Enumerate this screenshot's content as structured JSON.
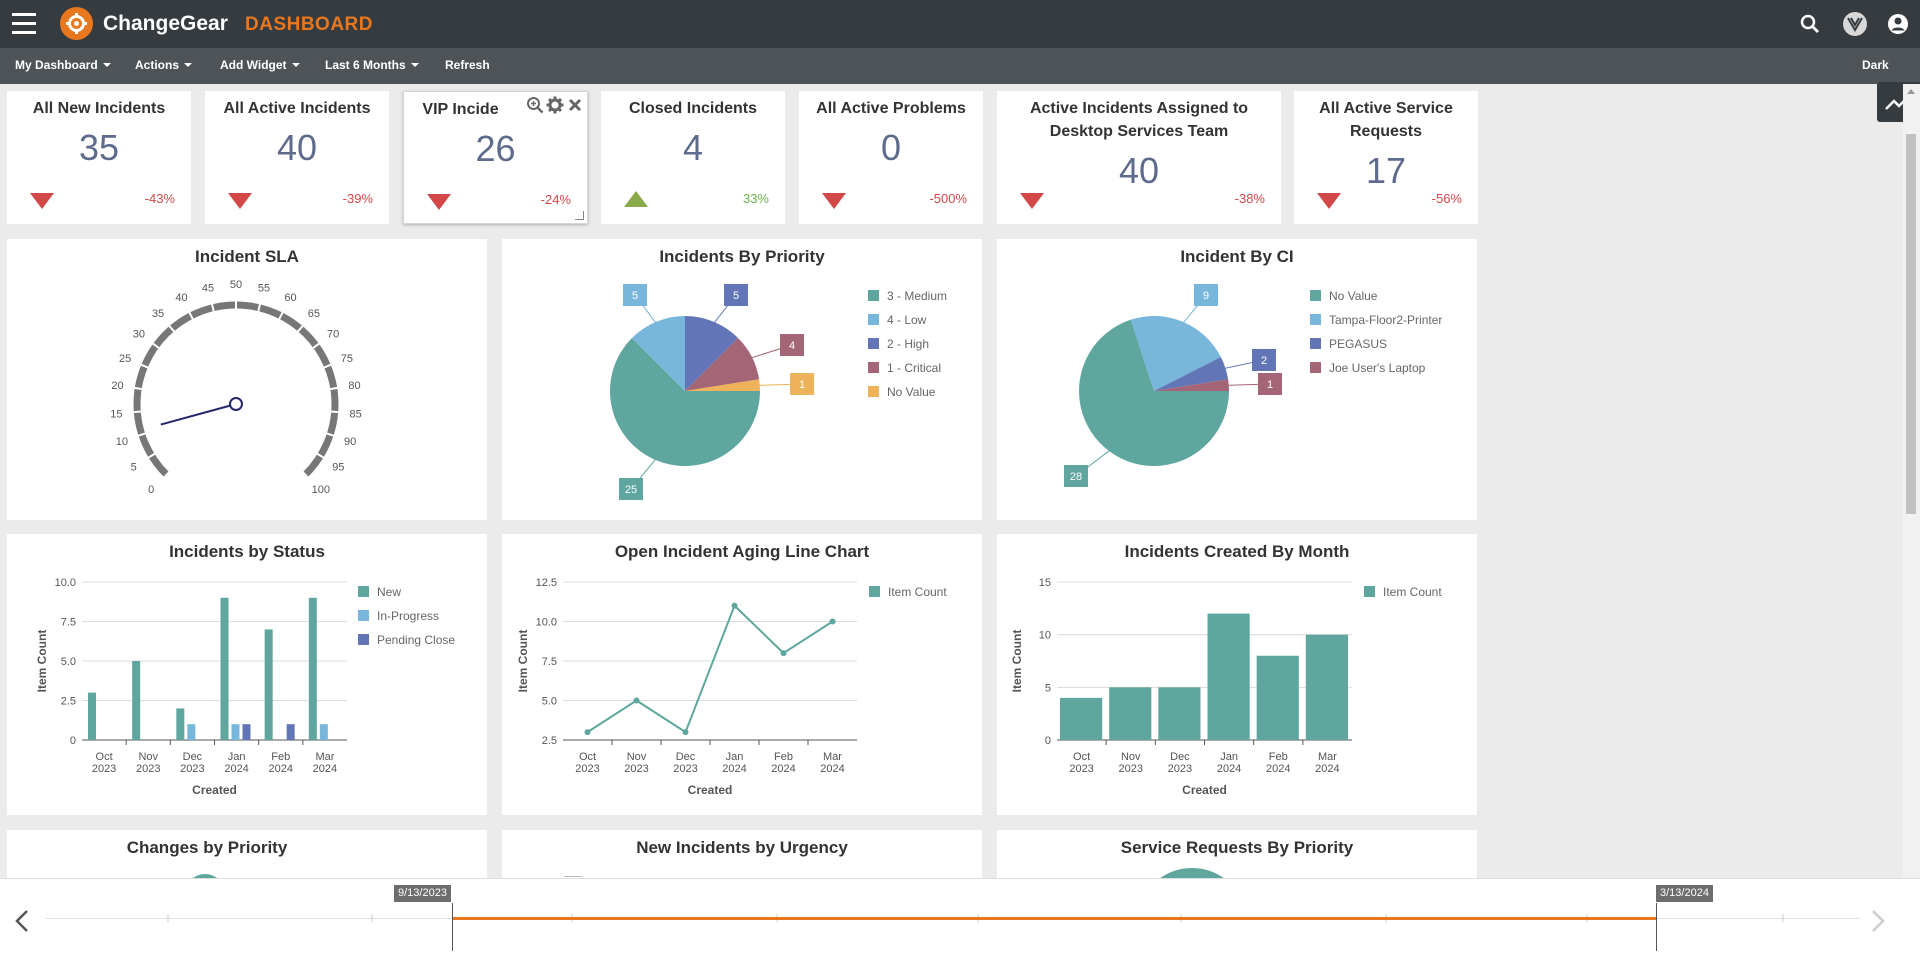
{
  "app": {
    "name": "ChangeGear",
    "section": "DASHBOARD"
  },
  "menu": {
    "my_dashboard": "My Dashboard",
    "actions": "Actions",
    "add_widget": "Add Widget",
    "range": "Last 6 Months",
    "refresh": "Refresh",
    "theme": "Dark"
  },
  "kpis": [
    {
      "title": "All New Incidents",
      "value": "35",
      "change": "-43%",
      "trend": "down"
    },
    {
      "title": "All Active Incidents",
      "value": "40",
      "change": "-39%",
      "trend": "down"
    },
    {
      "title": "VIP Incide",
      "value": "26",
      "change": "-24%",
      "trend": "down"
    },
    {
      "title": "Closed Incidents",
      "value": "4",
      "change": "33%",
      "trend": "up"
    },
    {
      "title": "All Active Problems",
      "value": "0",
      "change": "-500%",
      "trend": "down"
    },
    {
      "title": "Active Incidents Assigned to Desktop Services Team",
      "value": "40",
      "change": "-38%",
      "trend": "down"
    },
    {
      "title": "All Active Service Requests",
      "value": "17",
      "change": "-56%",
      "trend": "down"
    }
  ],
  "panels": {
    "sla": "Incident SLA",
    "priority": "Incidents By Priority",
    "ci": "Incident By CI",
    "status": "Incidents by Status",
    "aging": "Open Incident Aging Line Chart",
    "by_month": "Incidents Created By Month",
    "changes": "Changes by Priority",
    "urgency": "New Incidents by Urgency",
    "sr_priority": "Service Requests By Priority"
  },
  "timeline": {
    "start": "9/13/2023",
    "end": "3/13/2024"
  },
  "chart_data": [
    {
      "type": "gauge",
      "title": "Incident SLA",
      "min": 0,
      "max": 100,
      "ticks": [
        0,
        5,
        10,
        15,
        20,
        25,
        30,
        35,
        40,
        45,
        50,
        55,
        60,
        65,
        70,
        75,
        80,
        85,
        90,
        95,
        100
      ],
      "value": 11
    },
    {
      "type": "pie",
      "title": "Incidents By Priority",
      "labels": [
        "3 - Medium",
        "4 - Low",
        "2 - High",
        "1 - Critical",
        "No Value"
      ],
      "values": [
        25,
        5,
        5,
        4,
        1
      ],
      "colors": [
        "#5fa79e",
        "#79b6dc",
        "#6275b6",
        "#a46677",
        "#eeb35a"
      ]
    },
    {
      "type": "pie",
      "title": "Incident By CI",
      "labels": [
        "No Value",
        "Tampa-Floor2-Printer",
        "PEGASUS",
        "Joe User's Laptop"
      ],
      "values": [
        28,
        9,
        2,
        1
      ],
      "colors": [
        "#5fa79e",
        "#79b6dc",
        "#6275b6",
        "#a46677"
      ]
    },
    {
      "type": "bar",
      "title": "Incidents by Status",
      "categories": [
        [
          "Oct",
          "2023"
        ],
        [
          "Nov",
          "2023"
        ],
        [
          "Dec",
          "2023"
        ],
        [
          "Jan",
          "2024"
        ],
        [
          "Feb",
          "2024"
        ],
        [
          "Mar",
          "2024"
        ]
      ],
      "series": [
        {
          "name": "New",
          "values": [
            3,
            5,
            2,
            9,
            7,
            9
          ],
          "color": "#5fa79e"
        },
        {
          "name": "In-Progress",
          "values": [
            0,
            0,
            1,
            1,
            0,
            1
          ],
          "color": "#79b6dc"
        },
        {
          "name": "Pending Close",
          "values": [
            0,
            0,
            0,
            1,
            1,
            0
          ],
          "color": "#6275b6"
        }
      ],
      "xlabel": "Created",
      "ylabel": "Item Count",
      "ylim": [
        0,
        10
      ],
      "yticks": [
        "0",
        "2.5",
        "5.0",
        "7.5",
        "10.0"
      ]
    },
    {
      "type": "line",
      "title": "Open Incident Aging Line Chart",
      "categories": [
        [
          "Oct",
          "2023"
        ],
        [
          "Nov",
          "2023"
        ],
        [
          "Dec",
          "2023"
        ],
        [
          "Jan",
          "2024"
        ],
        [
          "Feb",
          "2024"
        ],
        [
          "Mar",
          "2024"
        ]
      ],
      "series": [
        {
          "name": "Item Count",
          "values": [
            3,
            5,
            3,
            11,
            8,
            10
          ],
          "color": "#5fa79e"
        }
      ],
      "xlabel": "Created",
      "ylabel": "Item Count",
      "ylim": [
        2.5,
        12.5
      ],
      "yticks": [
        "2.5",
        "5.0",
        "7.5",
        "10.0",
        "12.5"
      ]
    },
    {
      "type": "bar",
      "title": "Incidents Created By Month",
      "categories": [
        [
          "Oct",
          "2023"
        ],
        [
          "Nov",
          "2023"
        ],
        [
          "Dec",
          "2023"
        ],
        [
          "Jan",
          "2024"
        ],
        [
          "Feb",
          "2024"
        ],
        [
          "Mar",
          "2024"
        ]
      ],
      "series": [
        {
          "name": "Item Count",
          "values": [
            4,
            5,
            5,
            12,
            8,
            10
          ],
          "color": "#5fa79e"
        }
      ],
      "xlabel": "Created",
      "ylabel": "Item Count",
      "ylim": [
        0,
        15
      ],
      "yticks": [
        "0",
        "5",
        "10",
        "15"
      ]
    }
  ]
}
